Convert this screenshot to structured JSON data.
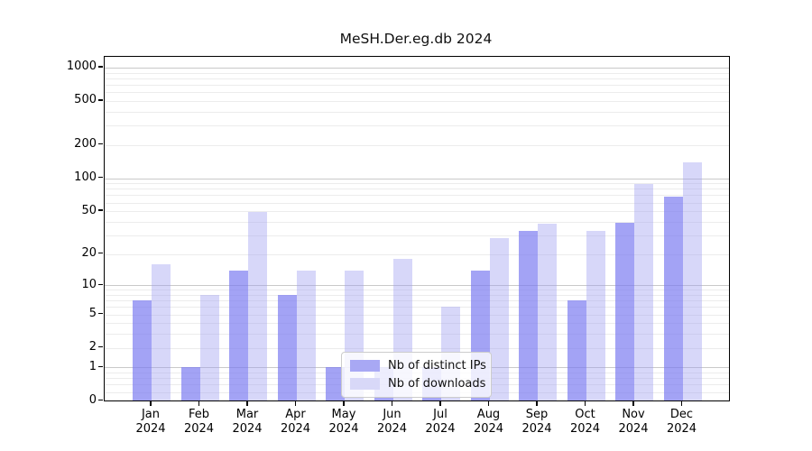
{
  "title": "MeSH.Der.eg.db 2024",
  "chart_data": {
    "type": "bar",
    "title": "MeSH.Der.eg.db 2024",
    "xlabel": "",
    "ylabel": "",
    "scale": "log1p",
    "grid": true,
    "legend_position": "bottom-center-inside",
    "categories": [
      "Jan",
      "Feb",
      "Mar",
      "Apr",
      "May",
      "Jun",
      "Jul",
      "Aug",
      "Sep",
      "Oct",
      "Nov",
      "Dec"
    ],
    "year_label": "2024",
    "yticks": [
      0,
      1,
      2,
      5,
      10,
      20,
      50,
      100,
      200,
      500,
      1000
    ],
    "ylim": [
      0,
      1250
    ],
    "series": [
      {
        "name": "Nb of distinct IPs",
        "color": "rgba(120,120,240,0.68)",
        "legend_color": "#a8a8f4",
        "values": [
          7,
          1,
          14,
          8,
          1,
          1,
          1,
          14,
          33,
          7,
          39,
          68
        ]
      },
      {
        "name": "Nb of downloads",
        "color": "rgba(160,160,240,0.42)",
        "legend_color": "#d8d8f8",
        "values": [
          16,
          8,
          49,
          14,
          14,
          18,
          6,
          28,
          38,
          33,
          88,
          140
        ]
      }
    ]
  }
}
